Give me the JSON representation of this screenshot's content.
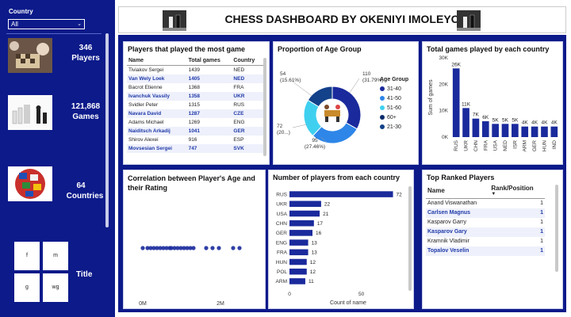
{
  "filter": {
    "label": "Country",
    "value": "All"
  },
  "kpis": [
    {
      "value": "346",
      "label": "Players"
    },
    {
      "value": "121,868",
      "label": "Games"
    },
    {
      "value": "64",
      "label": "Countries"
    }
  ],
  "title_slicer": {
    "label": "Title",
    "options": [
      "f",
      "m",
      "g",
      "wg"
    ]
  },
  "header": {
    "title": "CHESS DASHBOARD BY OKENIYI IMOLEYO"
  },
  "players_table": {
    "title": "Players that played the most game",
    "columns": [
      "Name",
      "Total games",
      "Country"
    ],
    "rows": [
      [
        "Tiviakov Sergei",
        "1439",
        "NED"
      ],
      [
        "Van Wely Loek",
        "1405",
        "NED"
      ],
      [
        "Bacrot Etienne",
        "1368",
        "FRA"
      ],
      [
        "Ivanchuk Vassily",
        "1358",
        "UKR"
      ],
      [
        "Svidler Peter",
        "1315",
        "RUS"
      ],
      [
        "Navara David",
        "1287",
        "CZE"
      ],
      [
        "Adams Michael",
        "1269",
        "ENG"
      ],
      [
        "Naiditsch Arkadij",
        "1041",
        "GER"
      ],
      [
        "Shirov Alexei",
        "916",
        "ESP"
      ],
      [
        "Movsesian Sergei",
        "747",
        "SVK"
      ]
    ]
  },
  "ranked_table": {
    "title": "Top Ranked Players",
    "columns": [
      "Name",
      "Rank/Position"
    ],
    "rows": [
      [
        "Anand Viswanathan",
        "1"
      ],
      [
        "Carlsen Magnus",
        "1"
      ],
      [
        "Kasparov Garry",
        "1"
      ],
      [
        "Kasparov Gary",
        "1"
      ],
      [
        "Kramnik Vladimir",
        "1"
      ],
      [
        "Topalov Veselin",
        "1"
      ]
    ]
  },
  "chart_data": [
    {
      "type": "pie",
      "title": "Proportion of Age Group",
      "legend_title": "Age Group",
      "legend_placement": "right",
      "categories": [
        "31-40",
        "41-50",
        "51-60",
        "60+",
        "21-30"
      ],
      "values": [
        110,
        95,
        72,
        0,
        54
      ],
      "data_labels": [
        "110 (31.79%)",
        "95 (27.46%)",
        "72 (20...)",
        "",
        "54 (15.61%)"
      ],
      "colors": [
        "#1a2a9c",
        "#2e86e8",
        "#3fd0f0",
        "#0a2b6a",
        "#13418a"
      ]
    },
    {
      "type": "bar",
      "title": "Total games played by each country",
      "ylabel": "Sum of games",
      "categories": [
        "RUS",
        "UKR",
        "CHN",
        "FRA",
        "USA",
        "NED",
        "ISR",
        "ARM",
        "GER",
        "HUN",
        "IND"
      ],
      "values": [
        26,
        11,
        7,
        6,
        5,
        5,
        5,
        4,
        4,
        4,
        4
      ],
      "data_labels": [
        "26K",
        "11K",
        "7K",
        "6K",
        "5K",
        "5K",
        "5K",
        "4K",
        "4K",
        "4K",
        "4K"
      ],
      "ylim": [
        0,
        30
      ],
      "yticks": [
        "0K",
        "10K",
        "20K",
        "30K"
      ],
      "color": "#1a2a9c"
    },
    {
      "type": "scatter",
      "title": "Correlation between Player's Age and their Rating",
      "xticks": [
        "0M",
        "2M"
      ],
      "color": "#1a2a9c"
    },
    {
      "type": "bar",
      "orientation": "horizontal",
      "title": "Number of players from each country",
      "xlabel": "Count of name",
      "categories": [
        "RUS",
        "UKR",
        "USA",
        "CHN",
        "GER",
        "ENG",
        "FRA",
        "HUN",
        "POL",
        "ARM"
      ],
      "values": [
        72,
        22,
        21,
        17,
        16,
        13,
        13,
        12,
        12,
        11
      ],
      "xticks": [
        "0",
        "50"
      ],
      "xlim": [
        0,
        75
      ],
      "color": "#1a2a9c"
    }
  ]
}
